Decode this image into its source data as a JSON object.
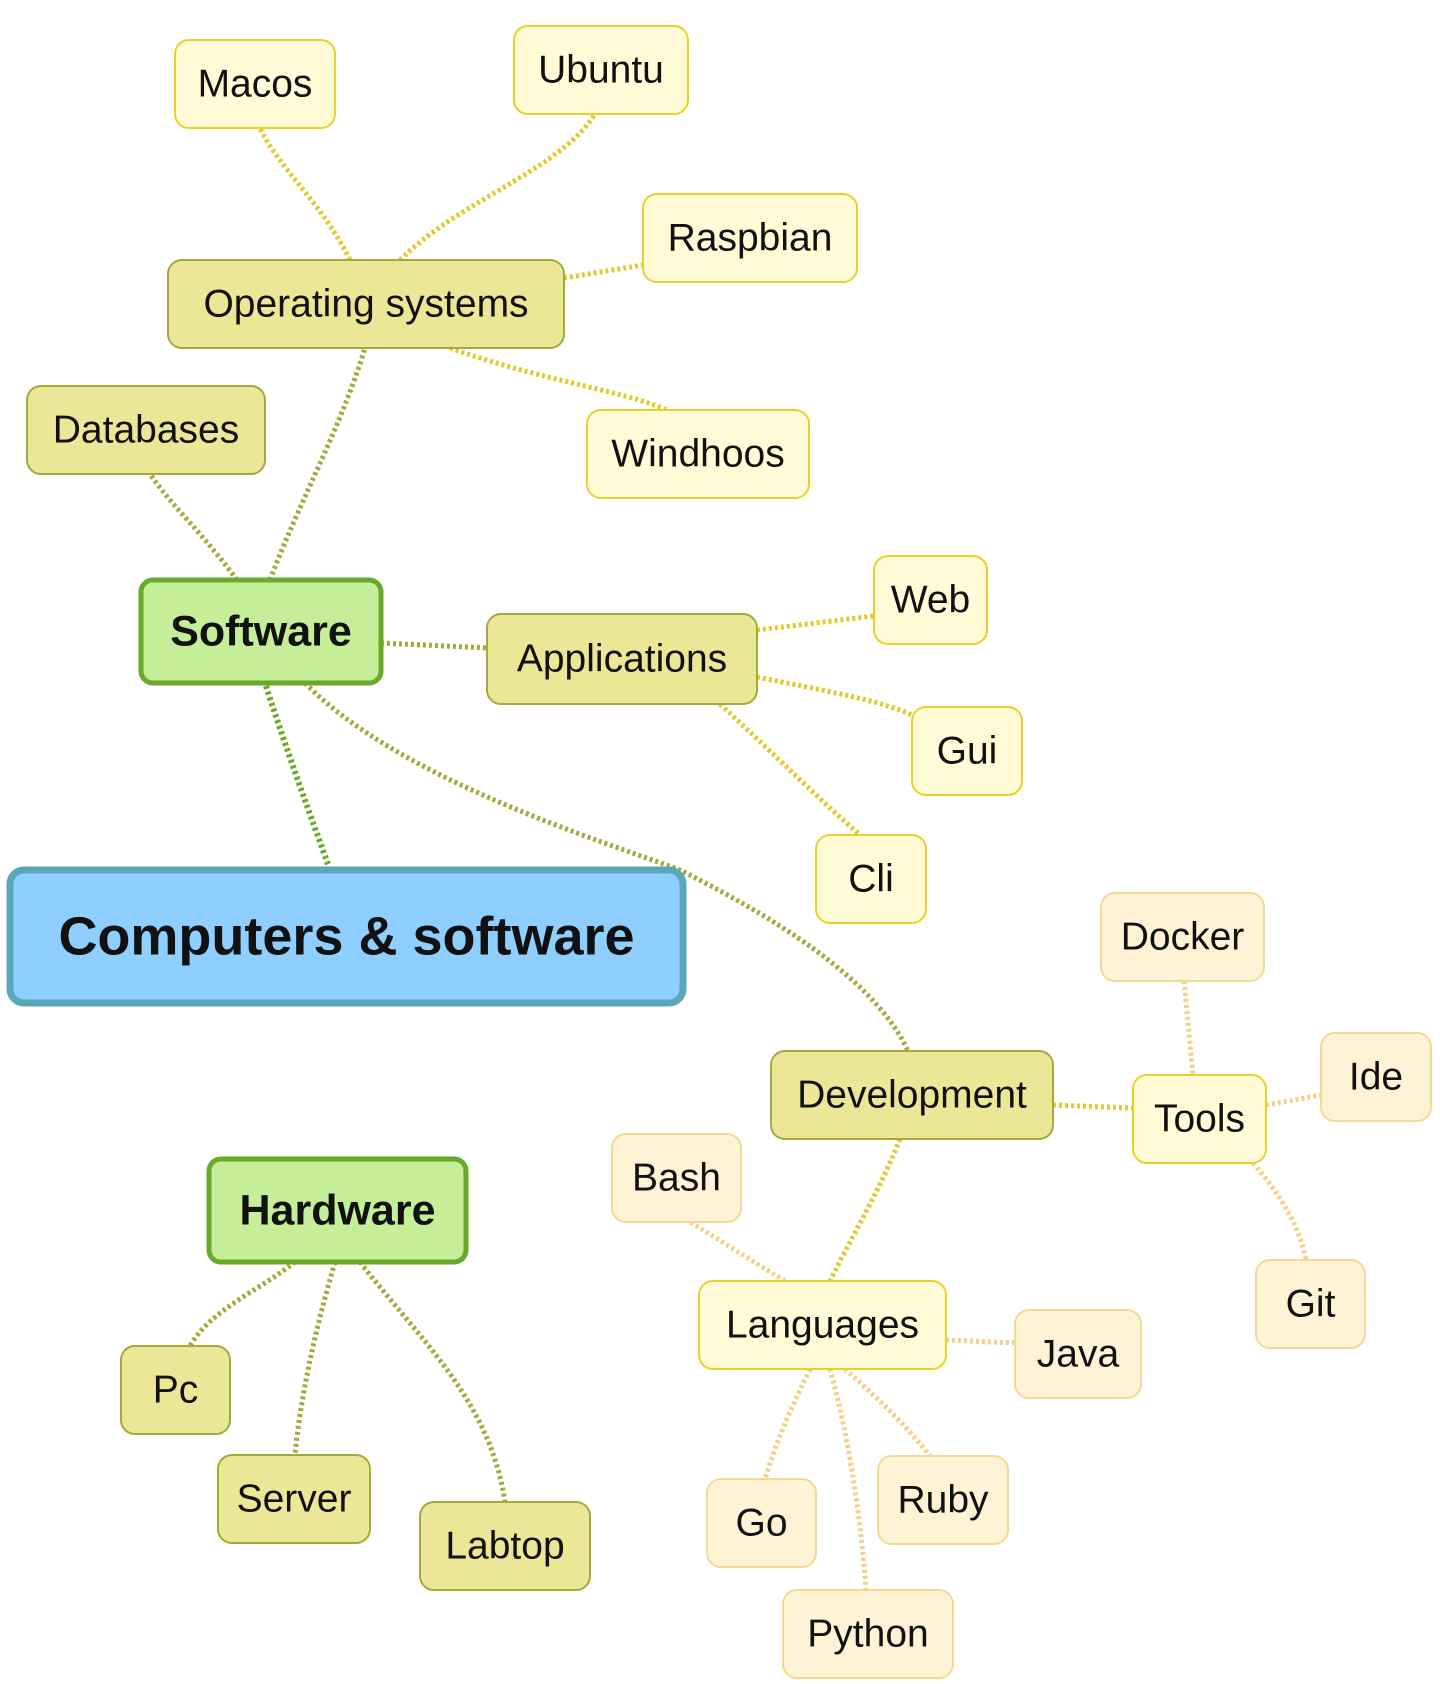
{
  "diagram": {
    "colors": {
      "root_fill": "#8ecfff",
      "root_stroke": "#5aa7b8",
      "l1_fill": "#c5ee98",
      "l1_stroke": "#6aaa2a",
      "l2_fill": "#ebe797",
      "l2_stroke": "#a7a83a",
      "l3_fill": "#fffbd6",
      "l3_stroke": "#ead12a",
      "l4_fill": "#fff3d6",
      "l4_stroke": "#f6d895",
      "edge_root": "#6aaa2a",
      "edge_l1": "#a7a83a",
      "edge_l2": "#e3c92a",
      "edge_l3": "#f6d084"
    },
    "nodes": {
      "root": "Computers & software",
      "software": "Software",
      "hardware": "Hardware",
      "operating_systems": "Operating systems",
      "databases": "Databases",
      "applications": "Applications",
      "development": "Development",
      "macos": "Macos",
      "ubuntu": "Ubuntu",
      "raspbian": "Raspbian",
      "windhoos": "Windhoos",
      "web": "Web",
      "gui": "Gui",
      "cli": "Cli",
      "tools": "Tools",
      "docker": "Docker",
      "ide": "Ide",
      "git": "Git",
      "languages": "Languages",
      "bash": "Bash",
      "java": "Java",
      "go": "Go",
      "python": "Python",
      "ruby": "Ruby",
      "pc": "Pc",
      "server": "Server",
      "labtop": "Labtop"
    }
  }
}
